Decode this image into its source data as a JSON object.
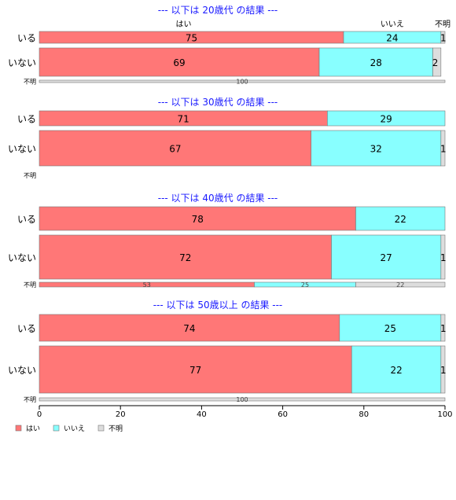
{
  "chart_data": {
    "type": "bar",
    "orientation": "horizontal",
    "stacked": "percent",
    "x_ticks": [
      "0",
      "20",
      "40",
      "60",
      "80",
      "100"
    ],
    "xlim": [
      0,
      100
    ],
    "grid": false,
    "legend_position": "bottom-left",
    "series_names": [
      "はい",
      "いいえ",
      "不明"
    ],
    "series_colors": [
      "#ff7777",
      "#88ffff",
      "#dddddd"
    ],
    "series_labels_above_first_bar": [
      "はい",
      "いいえ",
      "不明"
    ],
    "panels": [
      {
        "title": "--- 以下は 20歳代 の結果 ---",
        "rows": [
          {
            "label": "いる",
            "values": [
              75,
              24,
              1
            ],
            "size": "normal"
          },
          {
            "label": "いない",
            "values": [
              69,
              28,
              2
            ],
            "size": "large"
          },
          {
            "label": "不明",
            "values": [
              0,
              0,
              100
            ],
            "size": "thin"
          }
        ]
      },
      {
        "title": "--- 以下は 30歳代 の結果 ---",
        "rows": [
          {
            "label": "いる",
            "values": [
              71,
              29,
              0
            ],
            "size": "normal"
          },
          {
            "label": "いない",
            "values": [
              67,
              32,
              1
            ],
            "size": "large"
          },
          {
            "label": "不明",
            "values": [
              0,
              0,
              0
            ],
            "size": "thin"
          }
        ]
      },
      {
        "title": "--- 以下は 40歳代 の結果 ---",
        "rows": [
          {
            "label": "いる",
            "values": [
              78,
              22,
              0
            ],
            "size": "normal"
          },
          {
            "label": "いない",
            "values": [
              72,
              27,
              1
            ],
            "size": "large"
          },
          {
            "label": "不明",
            "values": [
              53,
              25,
              22
            ],
            "size": "thin"
          }
        ]
      },
      {
        "title": "--- 以下は 50歳以上 の結果 ---",
        "rows": [
          {
            "label": "いる",
            "values": [
              74,
              25,
              1
            ],
            "size": "normal"
          },
          {
            "label": "いない",
            "values": [
              77,
              22,
              1
            ],
            "size": "large"
          },
          {
            "label": "不明",
            "values": [
              0,
              0,
              100
            ],
            "size": "thin"
          }
        ]
      }
    ]
  }
}
